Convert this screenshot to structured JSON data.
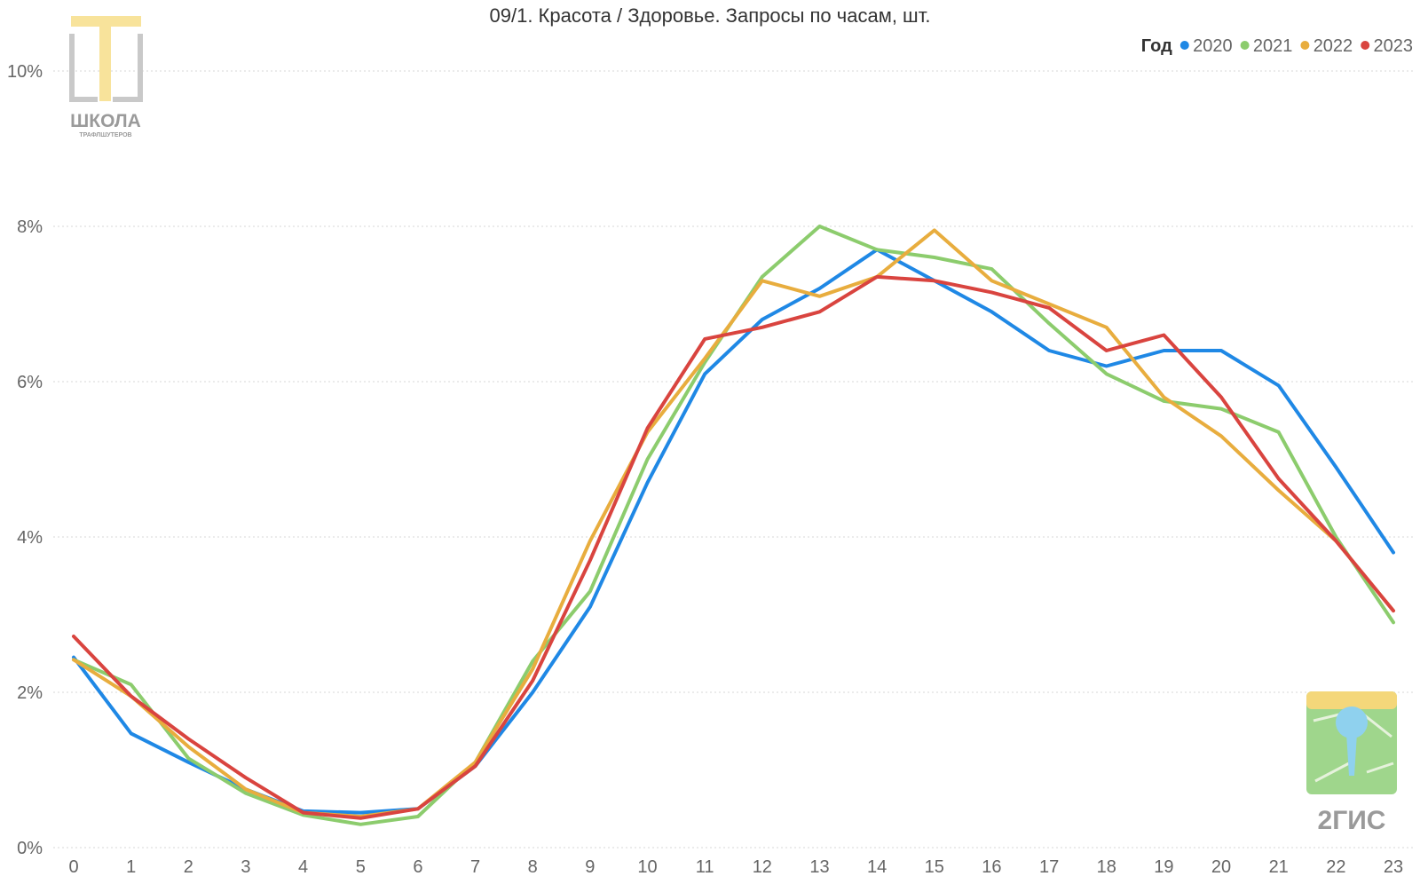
{
  "chart_data": {
    "type": "line",
    "title": "09/1. Красота / Здоровье. Запросы по часам, шт.",
    "legend": {
      "title": "Год",
      "position": "top-right"
    },
    "x": [
      0,
      1,
      2,
      3,
      4,
      5,
      6,
      7,
      8,
      9,
      10,
      11,
      12,
      13,
      14,
      15,
      16,
      17,
      18,
      19,
      20,
      21,
      22,
      23
    ],
    "ylim": [
      0,
      10
    ],
    "yticks": [
      0,
      2,
      4,
      6,
      8,
      10
    ],
    "ytick_labels": [
      "0%",
      "2%",
      "4%",
      "6%",
      "8%",
      "10%"
    ],
    "grid": true,
    "series": [
      {
        "name": "2020",
        "color": "#1f88e5",
        "values": [
          2.45,
          1.47,
          1.1,
          0.75,
          0.47,
          0.45,
          0.5,
          1.05,
          2.0,
          3.1,
          4.7,
          6.1,
          6.8,
          7.2,
          7.7,
          7.3,
          6.9,
          6.4,
          6.2,
          6.4,
          6.4,
          5.95,
          4.9,
          3.8
        ]
      },
      {
        "name": "2021",
        "color": "#8ccc6d",
        "values": [
          2.42,
          2.1,
          1.15,
          0.7,
          0.42,
          0.3,
          0.4,
          1.1,
          2.4,
          3.3,
          5.0,
          6.25,
          7.35,
          8.0,
          7.7,
          7.6,
          7.45,
          6.75,
          6.1,
          5.75,
          5.65,
          5.35,
          4.0,
          2.9
        ]
      },
      {
        "name": "2022",
        "color": "#e8ad3e",
        "values": [
          2.42,
          1.95,
          1.3,
          0.75,
          0.45,
          0.4,
          0.5,
          1.1,
          2.3,
          3.95,
          5.35,
          6.3,
          7.3,
          7.1,
          7.35,
          7.95,
          7.3,
          7.0,
          6.7,
          5.8,
          5.3,
          4.6,
          3.95,
          3.05
        ]
      },
      {
        "name": "2023",
        "color": "#d9443f",
        "values": [
          2.72,
          1.95,
          1.4,
          0.9,
          0.45,
          0.38,
          0.5,
          1.05,
          2.15,
          3.7,
          5.4,
          6.55,
          6.7,
          6.9,
          7.35,
          7.3,
          7.15,
          6.95,
          6.4,
          6.6,
          5.8,
          4.75,
          3.95,
          3.05
        ]
      }
    ]
  },
  "logos": {
    "school_text": "ШКОЛА",
    "school_subtext": "ТРАФЛШУТЕРОВ",
    "gis_text": "2ГИС"
  }
}
